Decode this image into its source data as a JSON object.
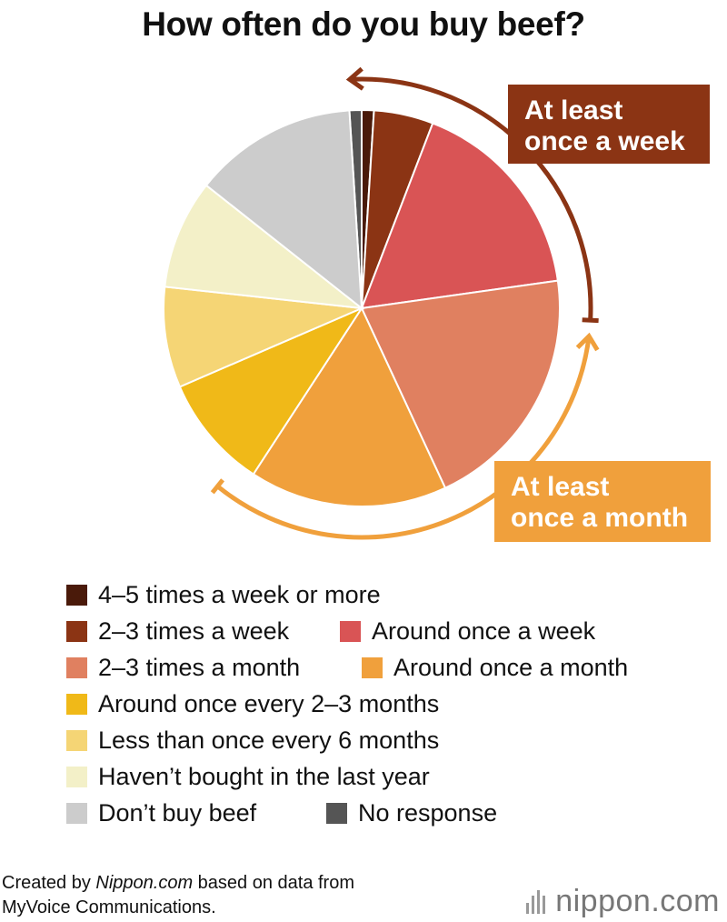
{
  "chart_data": {
    "type": "pie",
    "title": "How often do you buy beef?",
    "slices": [
      {
        "label": "No response",
        "value": 1.0,
        "color": "#555555"
      },
      {
        "label": "4–5 times a week or more",
        "value": 1.0,
        "color": "#4a1a0a"
      },
      {
        "label": "2–3 times a week",
        "value": 4.9,
        "color": "#8b3414"
      },
      {
        "label": "Around once a week",
        "value": 17.1,
        "color": "#d95455"
      },
      {
        "label": "2–3 times a month",
        "value": 20.5,
        "color": "#e08060"
      },
      {
        "label": "Around once a month",
        "value": 16.3,
        "color": "#f0a03c"
      },
      {
        "label": "Around once every 2–3 months",
        "value": 9.4,
        "color": "#f0b918"
      },
      {
        "label": "Less than once every 6 months",
        "value": 8.3,
        "color": "#f5d575"
      },
      {
        "label": "Haven’t bought in the last year",
        "value": 9.0,
        "color": "#f3f0c8"
      },
      {
        "label": "Don’t buy beef",
        "value": 13.5,
        "color": "#cccccc"
      }
    ],
    "annotations": [
      {
        "text": "At least\nonce a week",
        "color": "#8b3414",
        "lines": [
          "At least",
          "once a week"
        ]
      },
      {
        "text": "At least\nonce a month",
        "color": "#f0a03c",
        "lines": [
          "At least",
          "once a month"
        ]
      }
    ],
    "legend": [
      {
        "label": "4–5 times a week or more",
        "color": "#4a1a0a"
      },
      {
        "label": "2–3 times a week",
        "color": "#8b3414"
      },
      {
        "label": "Around once a week",
        "color": "#d95455"
      },
      {
        "label": "2–3 times a month",
        "color": "#e08060"
      },
      {
        "label": "Around once a month",
        "color": "#f0a03c"
      },
      {
        "label": "Around once every 2–3 months",
        "color": "#f0b918"
      },
      {
        "label": "Less than once every 6 months",
        "color": "#f5d575"
      },
      {
        "label": "Haven’t bought in the last year",
        "color": "#f3f0c8"
      },
      {
        "label": "Don’t buy beef",
        "color": "#cccccc"
      },
      {
        "label": "No response",
        "color": "#555555"
      }
    ],
    "legend_placement": "bottom"
  },
  "footer": {
    "created_by": "Created by ",
    "site": "Nippon.com",
    "based_on": " based on data from",
    "source": "MyVoice Communications."
  },
  "brand": {
    "name": "nippon",
    "suffix": ".com"
  }
}
